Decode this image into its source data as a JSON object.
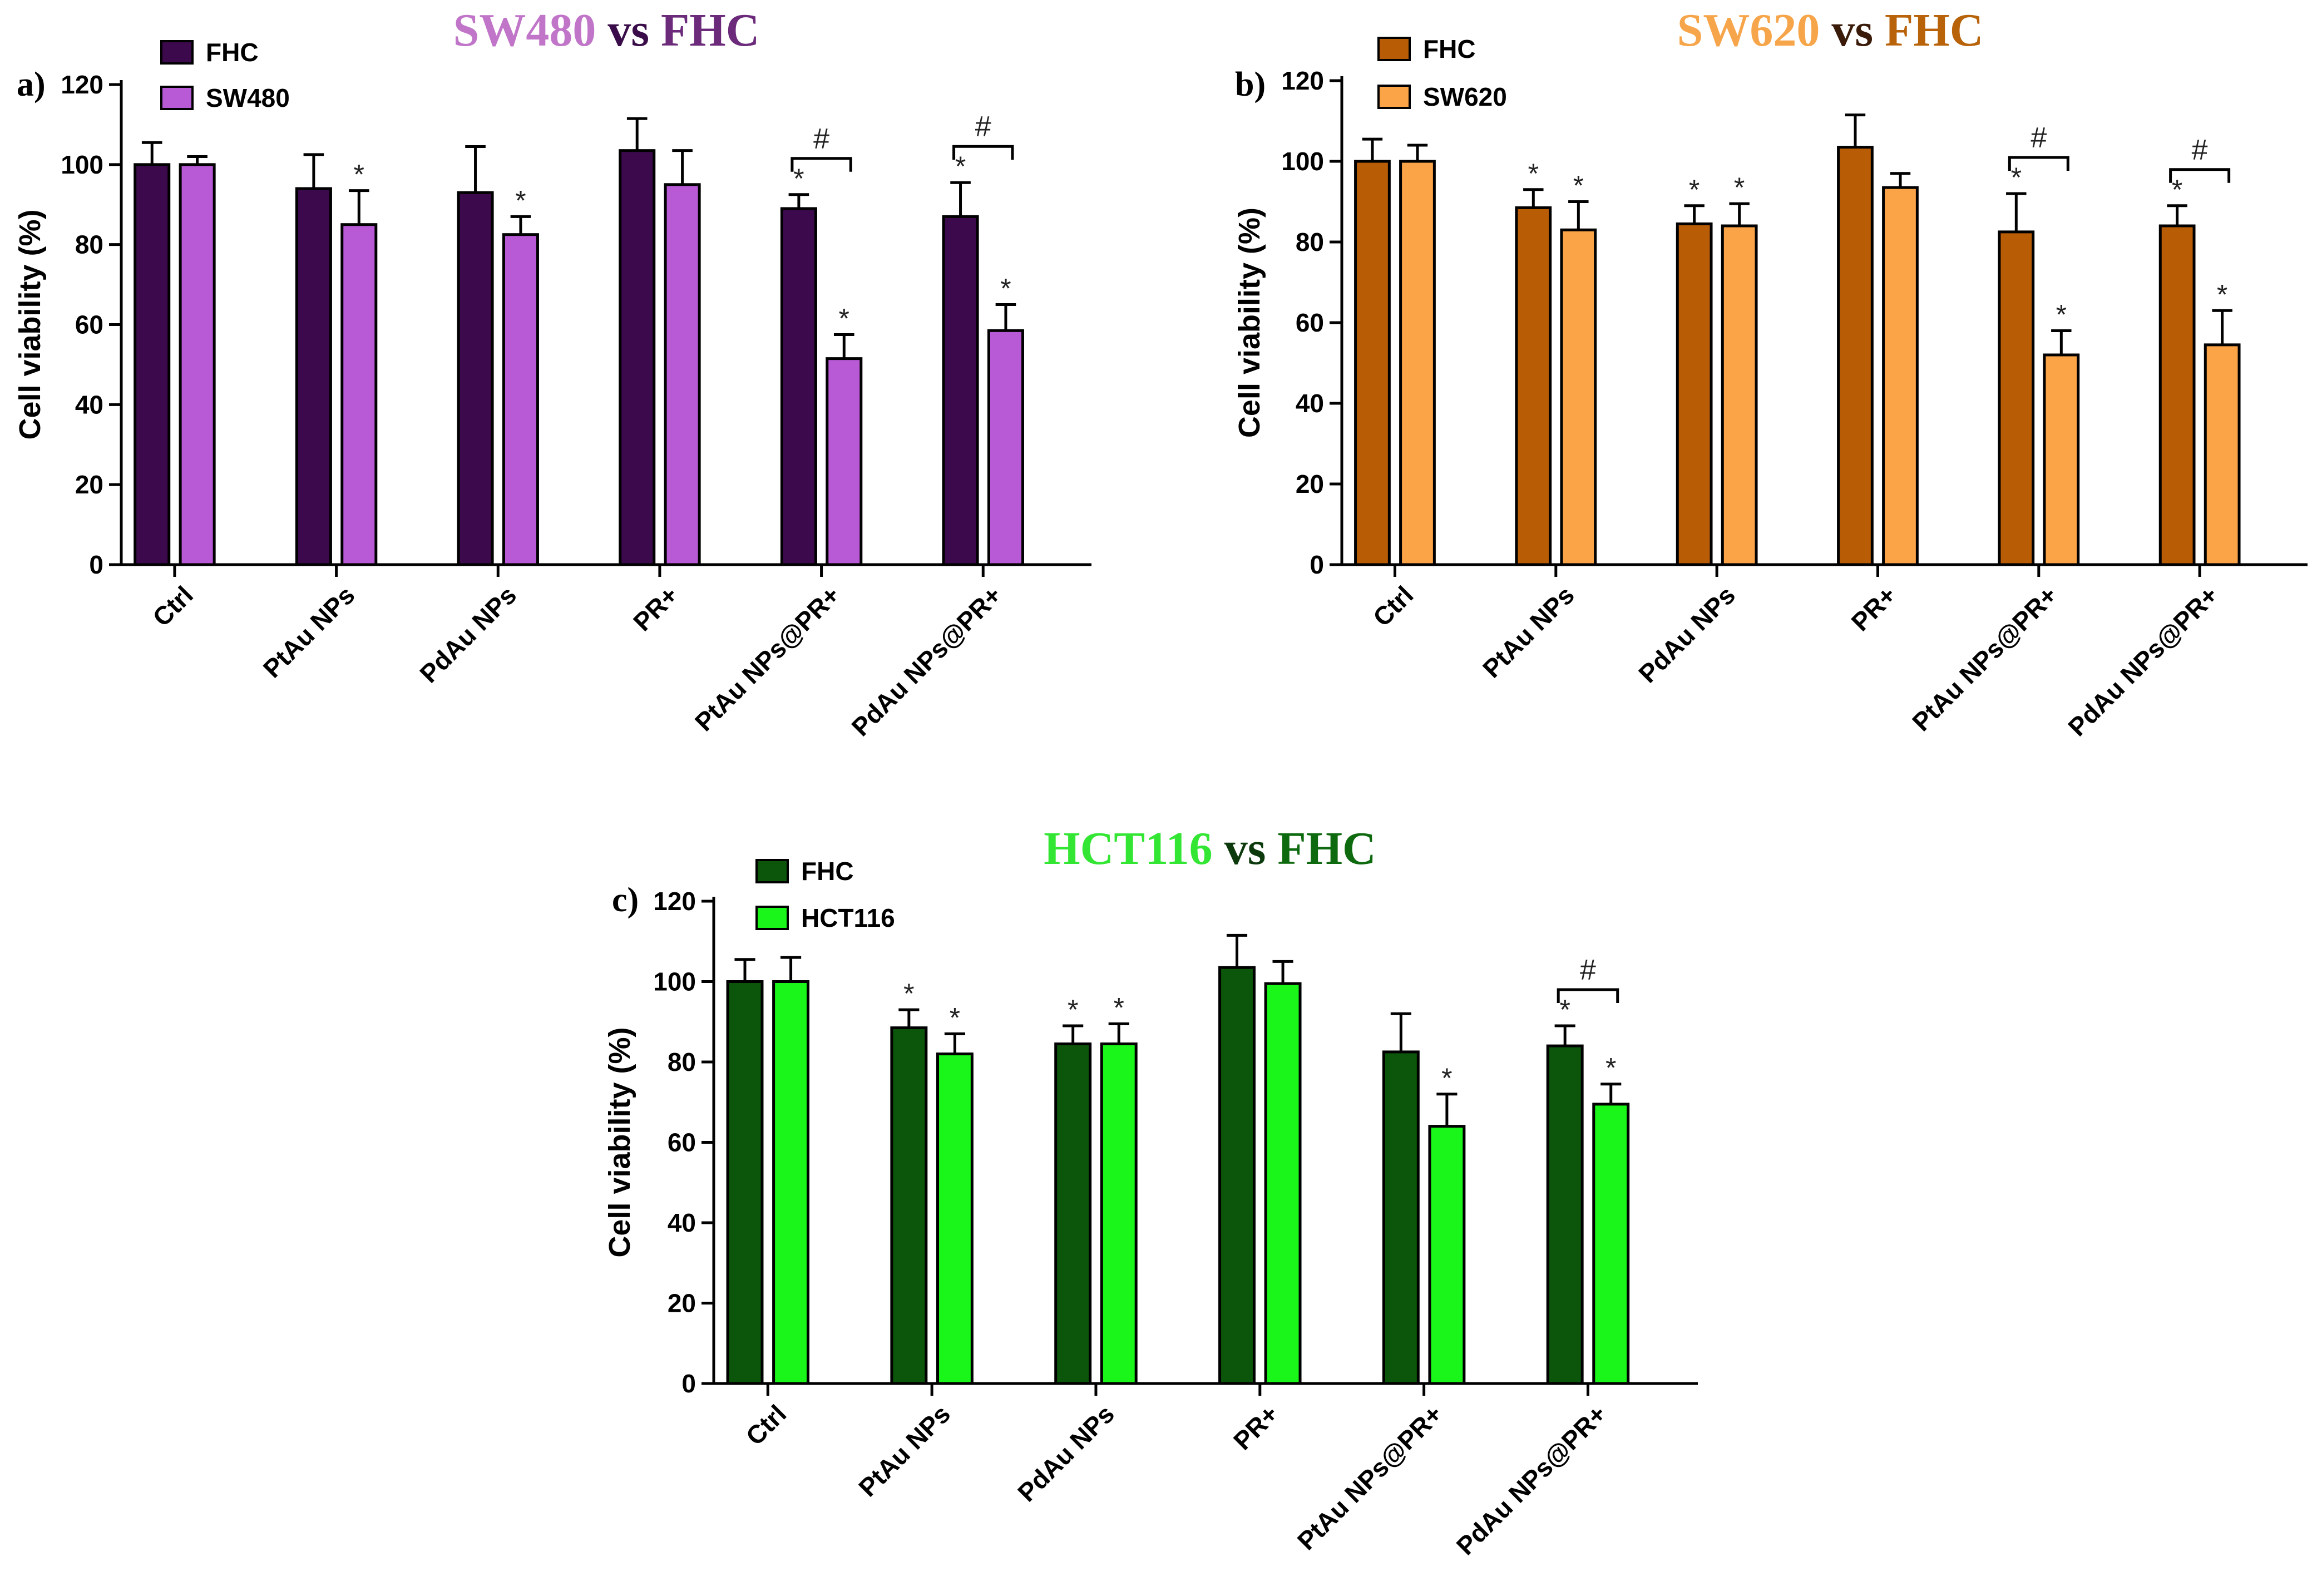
{
  "chart_data": [
    {
      "type": "bar",
      "panel_letter": "a)",
      "title_parts": [
        "SW480",
        "vs",
        "FHC"
      ],
      "title_colors": [
        "#c075c8",
        "#3a0d4a",
        "#6b2a7a"
      ],
      "ylabel": "Cell viability (%)",
      "ylim": [
        0,
        120
      ],
      "yticks": [
        "0",
        "20",
        "40",
        "60",
        "80",
        "100",
        "120"
      ],
      "categories": [
        "Ctrl",
        "PtAu NPs",
        "PdAu NPs",
        "PR+",
        "PtAu NPs@PR+",
        "PdAu NPs@PR+"
      ],
      "series": [
        {
          "name": "FHC",
          "color": "#3c0a4c",
          "values": [
            100,
            94,
            93,
            103.5,
            89,
            87
          ],
          "errors": [
            5.5,
            8.5,
            11.5,
            8,
            3.5,
            8.5
          ]
        },
        {
          "name": "SW480",
          "color": "#b85ad6",
          "values": [
            100,
            85,
            82.5,
            95,
            51.5,
            58.5
          ],
          "errors": [
            2,
            8.5,
            4.5,
            8.5,
            6,
            6.5
          ]
        }
      ],
      "star_marks": [
        [
          false,
          false,
          false,
          false,
          true,
          true
        ],
        [
          false,
          true,
          true,
          false,
          true,
          true
        ]
      ],
      "hash_brackets": [
        4,
        5
      ],
      "hash_text": "#",
      "star_text": "*"
    },
    {
      "type": "bar",
      "panel_letter": "b)",
      "title_parts": [
        "SW620",
        "vs",
        "FHC"
      ],
      "title_colors": [
        "#f7a54a",
        "#3a1a08",
        "#b8620a"
      ],
      "ylabel": "Cell viability (%)",
      "ylim": [
        0,
        120
      ],
      "yticks": [
        "0",
        "20",
        "40",
        "60",
        "80",
        "100",
        "120"
      ],
      "categories": [
        "Ctrl",
        "PtAu NPs",
        "PdAu NPs",
        "PR+",
        "PtAu NPs@PR+",
        "PdAu NPs@PR+"
      ],
      "series": [
        {
          "name": "FHC",
          "color": "#b85c06",
          "values": [
            100,
            88.5,
            84.5,
            103.5,
            82.5,
            84
          ],
          "errors": [
            5.5,
            4.5,
            4.5,
            8,
            9.5,
            5
          ]
        },
        {
          "name": "SW620",
          "color": "#fba347",
          "values": [
            100,
            83,
            84,
            93.5,
            52,
            54.5
          ],
          "errors": [
            4,
            7,
            5.5,
            3.5,
            6,
            8.5
          ]
        }
      ],
      "star_marks": [
        [
          false,
          true,
          true,
          false,
          true,
          true
        ],
        [
          false,
          true,
          true,
          false,
          true,
          true
        ]
      ],
      "hash_brackets": [
        4,
        5
      ],
      "hash_text": "#",
      "star_text": "*"
    },
    {
      "type": "bar",
      "panel_letter": "c)",
      "title_parts": [
        "HCT116",
        "vs",
        "FHC"
      ],
      "title_colors": [
        "#33e633",
        "#0c3a0c",
        "#0e6a0e"
      ],
      "ylabel": "Cell viability (%)",
      "ylim": [
        0,
        120
      ],
      "yticks": [
        "0",
        "20",
        "40",
        "60",
        "80",
        "100",
        "120"
      ],
      "categories": [
        "Ctrl",
        "PtAu NPs",
        "PdAu NPs",
        "PR+",
        "PtAu NPs@PR+",
        "PdAu NPs@PR+"
      ],
      "series": [
        {
          "name": "FHC",
          "color": "#0b560b",
          "values": [
            100,
            88.5,
            84.5,
            103.5,
            82.5,
            84
          ],
          "errors": [
            5.5,
            4.5,
            4.5,
            8,
            9.5,
            5
          ]
        },
        {
          "name": "HCT116",
          "color": "#1af51a",
          "values": [
            100,
            82,
            84.5,
            99.5,
            64,
            69.5
          ],
          "errors": [
            6,
            5,
            5,
            5.5,
            8,
            5
          ]
        }
      ],
      "star_marks": [
        [
          false,
          true,
          true,
          false,
          false,
          true
        ],
        [
          false,
          true,
          true,
          false,
          true,
          true
        ]
      ],
      "hash_brackets": [
        5
      ],
      "hash_text": "#",
      "star_text": "*"
    }
  ]
}
